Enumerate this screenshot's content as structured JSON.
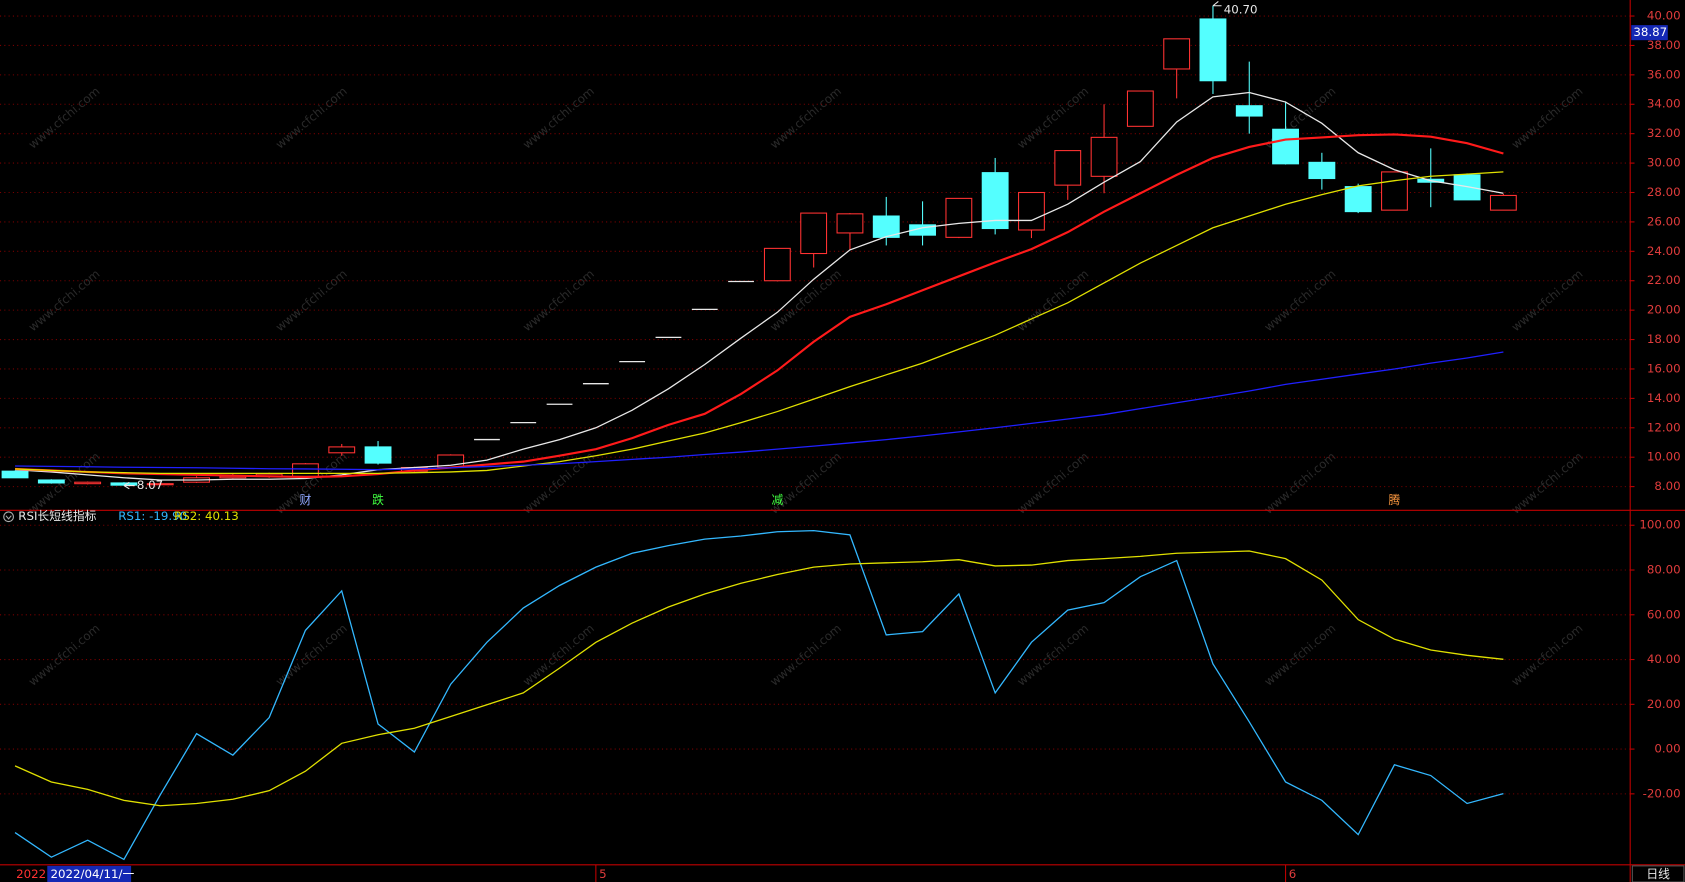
{
  "watermark": "www.cfchi.com",
  "period": "日线",
  "year_label": "2022",
  "chart_data": [
    {
      "type": "candlestick",
      "categories": [
        "2022/04/11/一",
        null,
        null,
        null,
        null,
        null,
        null,
        null,
        null,
        null,
        null,
        null,
        null,
        null,
        null,
        null,
        "5",
        null,
        null,
        null,
        null,
        null,
        null,
        null,
        null,
        null,
        null,
        null,
        null,
        null,
        null,
        null,
        null,
        null,
        null,
        "6",
        null,
        null,
        null,
        null,
        null,
        null
      ],
      "open": [
        9.05,
        8.45,
        8.2,
        8.25,
        8.15,
        8.3,
        8.6,
        8.7,
        8.7,
        10.3,
        10.7,
        9.05,
        9.3,
        11.2,
        12.35,
        13.6,
        15.0,
        16.5,
        18.15,
        20.05,
        21.95,
        22.0,
        23.85,
        25.25,
        26.4,
        25.8,
        24.95,
        29.35,
        25.45,
        28.5,
        29.1,
        32.5,
        36.4,
        39.8,
        33.9,
        32.3,
        30.05,
        28.4,
        26.8,
        28.9,
        29.2,
        26.8
      ],
      "high": [
        9.1,
        8.5,
        8.35,
        8.3,
        8.3,
        8.7,
        8.9,
        8.95,
        9.6,
        10.9,
        11.1,
        9.35,
        10.2,
        11.2,
        12.35,
        13.6,
        15.0,
        16.5,
        18.15,
        20.05,
        21.95,
        24.2,
        26.6,
        26.6,
        27.7,
        27.4,
        27.6,
        30.35,
        28.0,
        30.85,
        34.0,
        34.9,
        38.45,
        40.7,
        36.9,
        34.2,
        30.7,
        28.6,
        29.4,
        31.0,
        29.3,
        27.9
      ],
      "low": [
        8.6,
        8.2,
        8.15,
        8.07,
        8.1,
        8.25,
        8.55,
        8.6,
        8.65,
        10.1,
        9.5,
        9.0,
        9.25,
        11.2,
        12.35,
        13.6,
        15.0,
        16.5,
        18.15,
        20.05,
        21.95,
        21.95,
        22.9,
        24.1,
        24.4,
        24.4,
        24.9,
        25.15,
        24.9,
        27.5,
        27.95,
        32.5,
        34.4,
        34.7,
        32.0,
        29.9,
        28.2,
        26.6,
        26.8,
        27.0,
        27.5,
        26.8
      ],
      "close": [
        8.6,
        8.25,
        8.3,
        8.1,
        8.2,
        8.6,
        8.7,
        8.85,
        9.55,
        10.7,
        9.6,
        9.3,
        10.15,
        11.2,
        12.35,
        13.6,
        15.0,
        16.5,
        18.15,
        20.05,
        21.95,
        24.2,
        26.6,
        26.55,
        24.95,
        25.1,
        27.6,
        25.55,
        28.0,
        30.85,
        31.75,
        34.9,
        38.45,
        35.6,
        33.2,
        29.95,
        28.95,
        26.7,
        29.4,
        28.7,
        27.5,
        27.8
      ],
      "up_color": "#ff3232",
      "down_color": "#54ffff",
      "flat_color": "#e8e8e8",
      "lines": [
        {
          "color": "#e8e8e8",
          "values": [
            9.15,
            9.0,
            8.8,
            8.6,
            8.45,
            8.45,
            8.5,
            8.5,
            8.55,
            8.8,
            9.15,
            9.3,
            9.45,
            9.8,
            10.55,
            11.2,
            12.0,
            13.2,
            14.65,
            16.3,
            18.1,
            19.85,
            22.1,
            24.1,
            25.0,
            25.6,
            25.9,
            26.1,
            26.1,
            27.2,
            28.7,
            30.1,
            32.8,
            34.5,
            34.8,
            34.15,
            32.7,
            30.7,
            29.55,
            28.8,
            28.4,
            27.95
          ]
        },
        {
          "color": "#ff1a1a",
          "values": [
            9.2,
            9.1,
            9.0,
            8.9,
            8.85,
            8.8,
            8.75,
            8.7,
            8.65,
            8.7,
            8.85,
            9.1,
            9.3,
            9.5,
            9.7,
            10.1,
            10.55,
            11.3,
            12.2,
            12.95,
            14.3,
            15.9,
            17.85,
            19.55,
            20.4,
            21.35,
            22.3,
            23.25,
            24.15,
            25.3,
            26.7,
            27.95,
            29.2,
            30.35,
            31.1,
            31.6,
            31.75,
            31.9,
            31.95,
            31.8,
            31.35,
            30.65
          ]
        },
        {
          "color": "#e0e000",
          "values": [
            9.2,
            9.1,
            9.0,
            8.95,
            8.9,
            8.9,
            8.9,
            8.9,
            8.9,
            8.9,
            8.9,
            8.95,
            9.0,
            9.1,
            9.4,
            9.7,
            10.1,
            10.55,
            11.1,
            11.65,
            12.35,
            13.1,
            13.95,
            14.8,
            15.6,
            16.4,
            17.35,
            18.3,
            19.4,
            20.5,
            21.85,
            23.2,
            24.4,
            25.6,
            26.4,
            27.2,
            27.85,
            28.45,
            28.8,
            29.1,
            29.25,
            29.4
          ]
        },
        {
          "color": "#2020ff",
          "values": [
            9.4,
            9.38,
            9.35,
            9.32,
            9.3,
            9.28,
            9.25,
            9.22,
            9.2,
            9.18,
            9.15,
            9.2,
            9.28,
            9.36,
            9.45,
            9.55,
            9.7,
            9.85,
            10.0,
            10.18,
            10.35,
            10.55,
            10.75,
            10.97,
            11.2,
            11.45,
            11.72,
            12.0,
            12.3,
            12.6,
            12.9,
            13.3,
            13.7,
            14.1,
            14.5,
            14.95,
            15.3,
            15.65,
            16.0,
            16.4,
            16.75,
            17.15
          ]
        }
      ],
      "markers": [
        null,
        null,
        null,
        null,
        null,
        null,
        null,
        null,
        {
          "label": "财",
          "color": "#8fa8ff"
        },
        null,
        {
          "label": "跌",
          "color": "#40ff40"
        },
        null,
        null,
        null,
        null,
        null,
        null,
        null,
        null,
        null,
        null,
        {
          "label": "减",
          "color": "#40ff40"
        },
        null,
        null,
        null,
        null,
        null,
        null,
        null,
        null,
        null,
        null,
        null,
        null,
        null,
        null,
        null,
        null,
        {
          "label": "腾",
          "color": "#ff9a40"
        },
        null,
        null,
        null
      ],
      "high_annotation": {
        "value": 40.7,
        "label": "40.70"
      },
      "low_annotation": {
        "value": 8.07,
        "label": "8.07"
      },
      "cursor_value": {
        "value": 38.87,
        "label": "38.87"
      },
      "ylim": [
        6.39,
        41.09
      ],
      "yticks": [
        {
          "value": 8,
          "label": "8.00"
        },
        {
          "value": 10,
          "label": "10.00"
        },
        {
          "value": 12,
          "label": "12.00"
        },
        {
          "value": 14,
          "label": "14.00"
        },
        {
          "value": 16,
          "label": "16.00"
        },
        {
          "value": 18,
          "label": "18.00"
        },
        {
          "value": 20,
          "label": "20.00"
        },
        {
          "value": 22,
          "label": "22.00"
        },
        {
          "value": 24,
          "label": "24.00"
        },
        {
          "value": 26,
          "label": "26.00"
        },
        {
          "value": 28,
          "label": "28.00"
        },
        {
          "value": 30,
          "label": "30.00"
        },
        {
          "value": 32,
          "label": "32.00"
        },
        {
          "value": 34,
          "label": "34.00"
        },
        {
          "value": 36,
          "label": "36.00"
        },
        {
          "value": 38,
          "label": "38.00"
        },
        {
          "value": 40,
          "label": "40.00"
        }
      ],
      "grid": true
    },
    {
      "type": "line",
      "title": "RSI长短线指标",
      "rs1_label": "RS1: -19.90",
      "rs2_label": "RS2: 40.13",
      "series": [
        {
          "color": "#33b8ff",
          "values": [
            -37.3,
            -48.3,
            -40.7,
            -49.3,
            -20.5,
            6.9,
            -2.7,
            14.1,
            53,
            70.7,
            11.2,
            -1.3,
            29,
            47.7,
            63,
            73.1,
            81.3,
            87.5,
            90.9,
            93.8,
            95.2,
            97.1,
            97.6,
            95.7,
            51,
            52.5,
            69.3,
            25.1,
            47.7,
            62.1,
            65.4,
            77,
            84.2,
            38.1,
            12.2,
            -14.7,
            -22.9,
            -38.2,
            -7,
            -11.8,
            -24.3,
            -19.9
          ]
        },
        {
          "color": "#e0e000",
          "values": [
            -7.5,
            -14.7,
            -18,
            -22.9,
            -25.3,
            -24.3,
            -22.4,
            -18.6,
            -9.9,
            2.6,
            6.4,
            9.3,
            14.6,
            19.8,
            25.1,
            36.2,
            47.7,
            56.3,
            63.5,
            69.3,
            74.1,
            78,
            81.3,
            82.7,
            83.2,
            83.7,
            84.6,
            81.8,
            82.2,
            84.2,
            85.1,
            86.1,
            87.5,
            88,
            88.5,
            85.1,
            75.5,
            57.8,
            49.1,
            44.3,
            41.9,
            40.13
          ]
        }
      ],
      "ylim": [
        -51.7,
        106.2
      ],
      "yticks": [
        {
          "value": -20,
          "label": "-20.00"
        },
        {
          "value": 0,
          "label": "0.00"
        },
        {
          "value": 20,
          "label": "20.00"
        },
        {
          "value": 40,
          "label": "40.00"
        },
        {
          "value": 60,
          "label": "60.00"
        },
        {
          "value": 80,
          "label": "80.00"
        },
        {
          "value": 100,
          "label": "100.00"
        }
      ],
      "grid": true
    }
  ]
}
